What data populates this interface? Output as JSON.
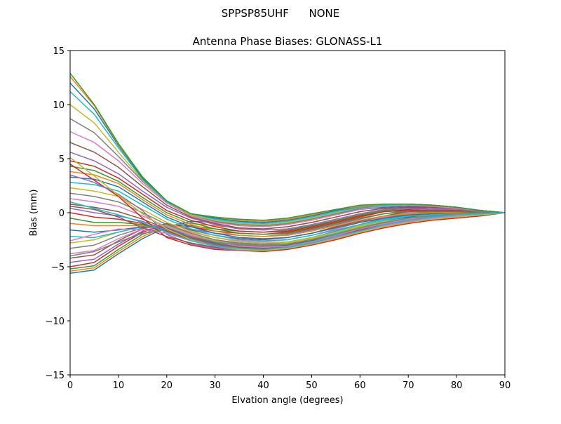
{
  "chart_data": {
    "type": "line",
    "suptitle": "SPPSP85UHF      NONE",
    "title": "Antenna Phase Biases: GLONASS-L1",
    "xlabel": "Elvation angle (degrees)",
    "ylabel": "Bias (mm)",
    "xlim": [
      0,
      90
    ],
    "ylim": [
      -15,
      15
    ],
    "xticks": [
      0,
      10,
      20,
      30,
      40,
      50,
      60,
      70,
      80,
      90
    ],
    "yticks": [
      -15,
      -10,
      -5,
      0,
      5,
      10,
      15
    ],
    "xtick_labels": [
      "0",
      "10",
      "20",
      "30",
      "40",
      "50",
      "60",
      "70",
      "80",
      "90"
    ],
    "ytick_labels": [
      "−15",
      "−10",
      "−5",
      "0",
      "5",
      "10",
      "15"
    ],
    "x": [
      0,
      5,
      10,
      15,
      20,
      25,
      30,
      35,
      40,
      45,
      50,
      55,
      60,
      65,
      70,
      75,
      80,
      85,
      90
    ],
    "grid": false,
    "legend": "none",
    "colors": [
      "#1f77b4",
      "#ff7f0e",
      "#2ca02c",
      "#d62728",
      "#9467bd",
      "#8c564b",
      "#e377c2",
      "#7f7f7f",
      "#bcbd22",
      "#17becf"
    ],
    "series": [
      {
        "name": "s1",
        "values": [
          -5.6,
          -5.3,
          -3.8,
          -2.4,
          -1.3,
          -0.8,
          -0.9,
          -1.1,
          -1.2,
          -1.0,
          -0.6,
          -0.1,
          0.3,
          0.5,
          0.6,
          0.5,
          0.4,
          0.2,
          0.0
        ]
      },
      {
        "name": "s2",
        "values": [
          -5.4,
          -5.1,
          -3.6,
          -2.2,
          -1.2,
          -1.0,
          -1.2,
          -1.4,
          -1.5,
          -1.3,
          -0.9,
          -0.4,
          0.1,
          0.4,
          0.5,
          0.5,
          0.4,
          0.2,
          0.0
        ]
      },
      {
        "name": "s3",
        "values": [
          -5.2,
          -4.9,
          -3.4,
          -2.0,
          -1.2,
          -1.2,
          -1.5,
          -1.7,
          -1.8,
          -1.6,
          -1.2,
          -0.7,
          -0.2,
          0.2,
          0.4,
          0.4,
          0.3,
          0.2,
          0.0
        ]
      },
      {
        "name": "s4",
        "values": [
          -5.0,
          -4.6,
          -3.1,
          -1.8,
          -1.1,
          -1.3,
          -1.7,
          -1.9,
          -2.0,
          -1.8,
          -1.4,
          -0.9,
          -0.4,
          0.1,
          0.3,
          0.4,
          0.3,
          0.2,
          0.0
        ]
      },
      {
        "name": "s5",
        "values": [
          -4.6,
          -4.3,
          -2.9,
          -1.7,
          -1.1,
          -1.5,
          -1.9,
          -2.1,
          -2.2,
          -2.0,
          -1.6,
          -1.1,
          -0.6,
          -0.1,
          0.2,
          0.3,
          0.3,
          0.1,
          0.0
        ]
      },
      {
        "name": "s6",
        "values": [
          -4.2,
          -3.9,
          -2.6,
          -1.5,
          -1.0,
          -1.6,
          -2.1,
          -2.4,
          -2.5,
          -2.3,
          -1.9,
          -1.3,
          -0.8,
          -0.3,
          0.1,
          0.2,
          0.2,
          0.1,
          0.0
        ]
      },
      {
        "name": "s7",
        "values": [
          -3.8,
          -3.5,
          -2.4,
          -1.5,
          -1.1,
          -1.8,
          -2.3,
          -2.6,
          -2.7,
          -2.5,
          -2.1,
          -1.5,
          -0.9,
          -0.4,
          0.0,
          0.2,
          0.2,
          0.1,
          0.0
        ]
      },
      {
        "name": "s8",
        "values": [
          -3.3,
          -3.0,
          -2.1,
          -1.4,
          -1.1,
          -1.9,
          -2.5,
          -2.8,
          -2.9,
          -2.7,
          -2.3,
          -1.7,
          -1.1,
          -0.5,
          -0.1,
          0.1,
          0.1,
          0.1,
          0.0
        ]
      },
      {
        "name": "s9",
        "values": [
          -2.8,
          -2.5,
          -1.8,
          -1.3,
          -1.2,
          -2.0,
          -2.6,
          -2.9,
          -3.0,
          -2.8,
          -2.4,
          -1.8,
          -1.2,
          -0.6,
          -0.2,
          0.0,
          0.1,
          0.1,
          0.0
        ]
      },
      {
        "name": "s10",
        "values": [
          -2.2,
          -2.3,
          -1.8,
          -1.3,
          -1.3,
          -2.1,
          -2.7,
          -3.0,
          -3.1,
          -2.9,
          -2.5,
          -1.9,
          -1.3,
          -0.7,
          -0.3,
          -0.1,
          0.0,
          0.0,
          0.0
        ]
      },
      {
        "name": "s11",
        "values": [
          -1.6,
          -1.8,
          -1.6,
          -1.3,
          -1.4,
          -2.2,
          -2.8,
          -3.1,
          -3.2,
          -3.0,
          -2.6,
          -2.0,
          -1.4,
          -0.8,
          -0.4,
          -0.2,
          0.0,
          0.0,
          0.0
        ]
      },
      {
        "name": "s12",
        "values": [
          -1.0,
          -1.2,
          -1.2,
          -1.2,
          -1.5,
          -2.3,
          -2.9,
          -3.2,
          -3.3,
          -3.1,
          -2.7,
          -2.1,
          -1.5,
          -0.9,
          -0.5,
          -0.2,
          -0.1,
          0.0,
          0.0
        ]
      },
      {
        "name": "s13",
        "values": [
          -0.5,
          -0.9,
          -0.9,
          -1.1,
          -1.6,
          -2.4,
          -3.0,
          -3.3,
          -3.4,
          -3.2,
          -2.8,
          -2.2,
          -1.6,
          -1.0,
          -0.6,
          -0.3,
          -0.1,
          0.0,
          0.0
        ]
      },
      {
        "name": "s14",
        "values": [
          0.0,
          -0.4,
          -0.6,
          -1.0,
          -1.7,
          -2.5,
          -3.1,
          -3.4,
          -3.5,
          -3.3,
          -2.9,
          -2.3,
          -1.7,
          -1.1,
          -0.7,
          -0.4,
          -0.2,
          -0.1,
          0.0
        ]
      },
      {
        "name": "s15",
        "values": [
          0.4,
          0.0,
          -0.3,
          -0.8,
          -1.6,
          -2.4,
          -3.0,
          -3.3,
          -3.4,
          -3.3,
          -2.9,
          -2.3,
          -1.7,
          -1.1,
          -0.7,
          -0.4,
          -0.2,
          -0.1,
          0.0
        ]
      },
      {
        "name": "s16",
        "values": [
          0.8,
          0.5,
          0.1,
          -0.6,
          -1.5,
          -2.3,
          -2.9,
          -3.2,
          -3.3,
          -3.2,
          -2.8,
          -2.2,
          -1.6,
          -1.1,
          -0.7,
          -0.4,
          -0.2,
          -0.1,
          0.0
        ]
      },
      {
        "name": "s17",
        "values": [
          1.3,
          1.0,
          0.6,
          -0.3,
          -1.3,
          -2.1,
          -2.7,
          -3.1,
          -3.2,
          -3.1,
          -2.7,
          -2.1,
          -1.5,
          -1.0,
          -0.6,
          -0.4,
          -0.2,
          -0.1,
          0.0
        ]
      },
      {
        "name": "s18",
        "values": [
          1.8,
          1.5,
          1.0,
          0.0,
          -1.1,
          -1.9,
          -2.5,
          -2.9,
          -3.0,
          -2.9,
          -2.5,
          -2.0,
          -1.4,
          -0.9,
          -0.5,
          -0.3,
          -0.2,
          -0.1,
          0.0
        ]
      },
      {
        "name": "s19",
        "values": [
          2.3,
          2.0,
          1.5,
          0.3,
          -0.9,
          -1.7,
          -2.3,
          -2.7,
          -2.8,
          -2.7,
          -2.3,
          -1.8,
          -1.3,
          -0.8,
          -0.5,
          -0.3,
          -0.1,
          0.0,
          0.0
        ]
      },
      {
        "name": "s20",
        "values": [
          2.8,
          2.6,
          2.0,
          0.7,
          -0.6,
          -1.5,
          -2.1,
          -2.5,
          -2.6,
          -2.5,
          -2.1,
          -1.6,
          -1.1,
          -0.6,
          -0.3,
          -0.2,
          -0.1,
          0.0,
          0.0
        ]
      },
      {
        "name": "s21",
        "values": [
          3.3,
          3.1,
          2.4,
          1.0,
          -0.4,
          -1.3,
          -1.9,
          -2.3,
          -2.4,
          -2.3,
          -1.9,
          -1.4,
          -0.9,
          -0.5,
          -0.2,
          -0.1,
          0.0,
          0.0,
          0.0
        ]
      },
      {
        "name": "s22",
        "values": [
          3.8,
          3.5,
          2.7,
          1.2,
          -0.2,
          -1.1,
          -1.7,
          -2.1,
          -2.2,
          -2.1,
          -1.7,
          -1.2,
          -0.7,
          -0.3,
          -0.1,
          0.0,
          0.0,
          0.0,
          0.0
        ]
      },
      {
        "name": "s23",
        "values": [
          4.3,
          3.9,
          2.9,
          1.4,
          0.0,
          -0.9,
          -1.5,
          -1.9,
          -2.0,
          -1.9,
          -1.5,
          -1.0,
          -0.5,
          -0.1,
          0.1,
          0.1,
          0.1,
          0.0,
          0.0
        ]
      },
      {
        "name": "s24",
        "values": [
          4.8,
          4.3,
          3.2,
          1.7,
          0.2,
          -0.7,
          -1.3,
          -1.7,
          -1.8,
          -1.7,
          -1.3,
          -0.8,
          -0.3,
          0.1,
          0.2,
          0.2,
          0.2,
          0.1,
          0.0
        ]
      },
      {
        "name": "s25",
        "values": [
          5.6,
          4.8,
          3.6,
          2.0,
          0.5,
          -0.5,
          -1.1,
          -1.5,
          -1.6,
          -1.5,
          -1.1,
          -0.6,
          -0.1,
          0.3,
          0.4,
          0.4,
          0.3,
          0.1,
          0.0
        ]
      },
      {
        "name": "s26",
        "values": [
          6.5,
          5.6,
          4.2,
          2.4,
          0.7,
          -0.4,
          -1.0,
          -1.4,
          -1.5,
          -1.3,
          -0.9,
          -0.4,
          0.1,
          0.4,
          0.5,
          0.5,
          0.4,
          0.2,
          0.0
        ]
      },
      {
        "name": "s27",
        "values": [
          7.5,
          6.5,
          4.8,
          2.7,
          0.9,
          -0.3,
          -0.9,
          -1.2,
          -1.3,
          -1.1,
          -0.7,
          -0.2,
          0.3,
          0.6,
          0.7,
          0.6,
          0.4,
          0.2,
          0.0
        ]
      },
      {
        "name": "s28",
        "values": [
          8.7,
          7.4,
          5.2,
          2.9,
          1.0,
          -0.2,
          -0.8,
          -1.1,
          -1.2,
          -1.0,
          -0.6,
          -0.1,
          0.4,
          0.7,
          0.8,
          0.7,
          0.5,
          0.2,
          0.0
        ]
      },
      {
        "name": "s29",
        "values": [
          10.0,
          8.3,
          5.6,
          3.0,
          1.0,
          -0.2,
          -0.7,
          -1.0,
          -1.1,
          -0.9,
          -0.5,
          0.0,
          0.5,
          0.7,
          0.8,
          0.7,
          0.5,
          0.2,
          0.0
        ]
      },
      {
        "name": "s30",
        "values": [
          11.2,
          9.1,
          6.0,
          3.1,
          1.0,
          -0.1,
          -0.6,
          -0.9,
          -1.0,
          -0.8,
          -0.4,
          0.1,
          0.5,
          0.7,
          0.8,
          0.7,
          0.5,
          0.2,
          0.0
        ]
      },
      {
        "name": "s31",
        "values": [
          12.0,
          9.6,
          6.2,
          3.2,
          1.1,
          -0.1,
          -0.5,
          -0.8,
          -0.9,
          -0.7,
          -0.3,
          0.2,
          0.6,
          0.8,
          0.8,
          0.7,
          0.5,
          0.2,
          0.0
        ]
      },
      {
        "name": "s32",
        "values": [
          12.6,
          9.9,
          6.3,
          3.3,
          1.1,
          -0.1,
          -0.4,
          -0.7,
          -0.8,
          -0.6,
          -0.2,
          0.3,
          0.6,
          0.8,
          0.8,
          0.7,
          0.5,
          0.2,
          0.0
        ]
      },
      {
        "name": "s33",
        "values": [
          12.9,
          10.0,
          6.4,
          3.3,
          1.1,
          -0.1,
          -0.4,
          -0.6,
          -0.7,
          -0.5,
          -0.1,
          0.3,
          0.7,
          0.8,
          0.8,
          0.7,
          0.5,
          0.2,
          0.0
        ]
      },
      {
        "name": "s34",
        "values": [
          4.5,
          3.0,
          1.5,
          -0.5,
          -2.3,
          -3.0,
          -3.4,
          -3.5,
          -3.6,
          -3.4,
          -3.0,
          -2.5,
          -1.9,
          -1.4,
          -1.0,
          -0.7,
          -0.5,
          -0.3,
          0.0
        ]
      },
      {
        "name": "s35",
        "values": [
          3.5,
          2.8,
          1.7,
          0.2,
          -2.0,
          -2.9,
          -3.3,
          -3.5,
          -3.5,
          -3.3,
          -2.9,
          -2.4,
          -1.8,
          -1.3,
          -0.9,
          -0.6,
          -0.4,
          -0.2,
          0.0
        ]
      },
      {
        "name": "s36",
        "values": [
          0.6,
          0.3,
          -0.4,
          -1.4,
          -2.2,
          -2.8,
          -3.2,
          -3.4,
          -3.4,
          -3.2,
          -2.8,
          -2.3,
          -1.7,
          -1.2,
          -0.8,
          -0.5,
          -0.3,
          -0.1,
          0.0
        ]
      },
      {
        "name": "s37",
        "values": [
          -2.6,
          -2.0,
          -1.5,
          -1.6,
          -1.9,
          -2.6,
          -3.1,
          -3.4,
          -3.5,
          -3.3,
          -2.9,
          -2.3,
          -1.7,
          -1.2,
          -0.8,
          -0.5,
          -0.3,
          -0.1,
          0.0
        ]
      },
      {
        "name": "s38",
        "values": [
          -4.0,
          -3.6,
          -2.7,
          -1.9,
          -1.6,
          -2.2,
          -2.7,
          -3.0,
          -3.1,
          -2.9,
          -2.5,
          -2.0,
          -1.4,
          -0.9,
          -0.5,
          -0.3,
          -0.1,
          0.0,
          0.0
        ]
      },
      {
        "name": "s39",
        "values": [
          5.1,
          3.4,
          1.6,
          -0.1,
          -1.5,
          -2.5,
          -3.1,
          -3.4,
          -3.5,
          -3.3,
          -2.9,
          -2.4,
          -1.8,
          -1.3,
          -0.9,
          -0.6,
          -0.4,
          -0.2,
          0.0
        ]
      },
      {
        "name": "s40",
        "values": [
          1.0,
          0.4,
          -0.2,
          -0.9,
          -1.8,
          -2.6,
          -3.1,
          -3.3,
          -3.4,
          -3.2,
          -2.8,
          -2.2,
          -1.7,
          -1.1,
          -0.7,
          -0.4,
          -0.2,
          -0.1,
          0.0
        ]
      }
    ]
  }
}
